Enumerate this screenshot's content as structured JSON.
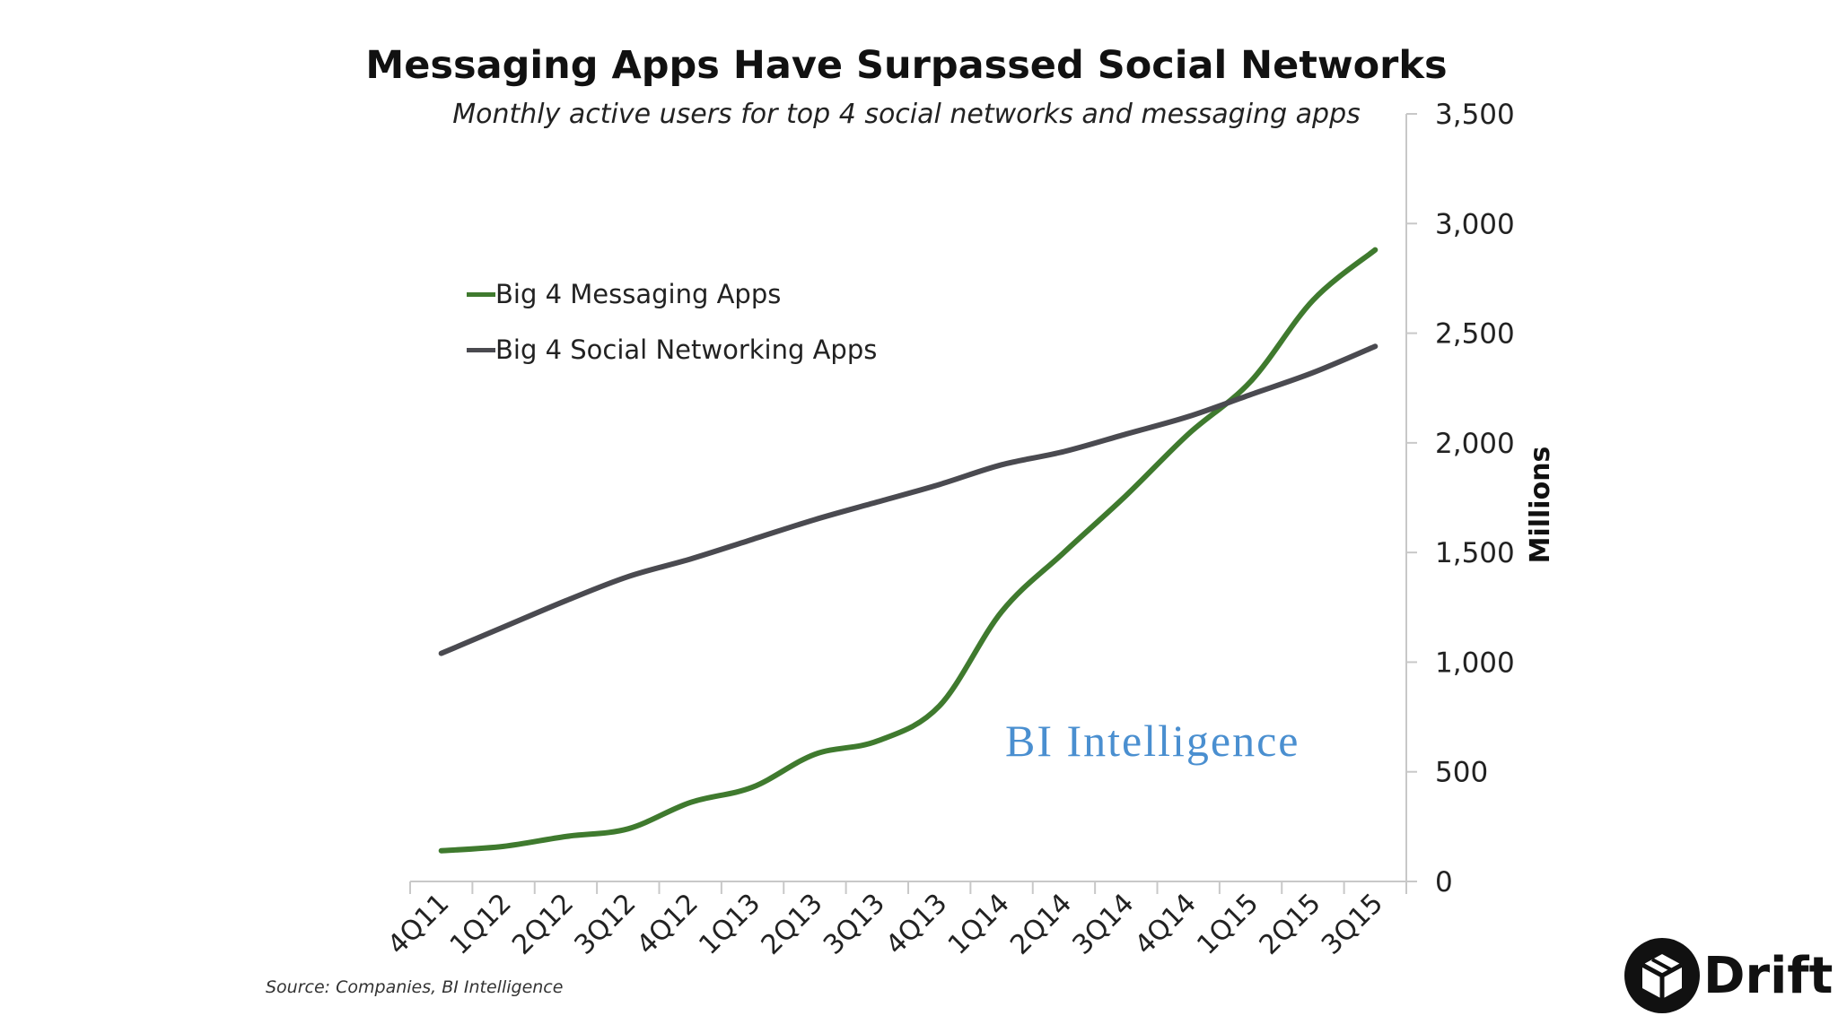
{
  "chart_data": {
    "type": "line",
    "title": "Messaging Apps Have Surpassed Social Networks",
    "subtitle": "Monthly active users for top 4 social networks and messaging apps",
    "ylabel": "Millions",
    "ylim": [
      0,
      3500
    ],
    "y_ticks": [
      "0",
      "500",
      "1,000",
      "1,500",
      "2,000",
      "2,500",
      "3,000",
      "3,500"
    ],
    "y_axis_side": "right",
    "grid": false,
    "legend_position": "upper-left",
    "categories": [
      "4Q11",
      "1Q12",
      "2Q12",
      "3Q12",
      "4Q12",
      "1Q13",
      "2Q13",
      "3Q13",
      "4Q13",
      "1Q14",
      "2Q14",
      "3Q14",
      "4Q14",
      "1Q15",
      "2Q15",
      "3Q15"
    ],
    "series": [
      {
        "name": "Big 4 Messaging Apps",
        "color": "#3f7a2e",
        "values": [
          140,
          160,
          205,
          240,
          360,
          430,
          580,
          640,
          800,
          1230,
          1500,
          1760,
          2040,
          2280,
          2650,
          2880
        ]
      },
      {
        "name": "Big 4 Social Networking Apps",
        "color": "#4a4a50",
        "values": [
          1040,
          1160,
          1280,
          1390,
          1470,
          1560,
          1650,
          1730,
          1810,
          1900,
          1960,
          2040,
          2120,
          2220,
          2320,
          2440
        ]
      }
    ],
    "annotations": [
      "BI Intelligence"
    ],
    "source": "Source: Companies, BI Intelligence"
  },
  "branding": {
    "logo_text": "Drift",
    "logo_icon": "drift-box-icon"
  }
}
